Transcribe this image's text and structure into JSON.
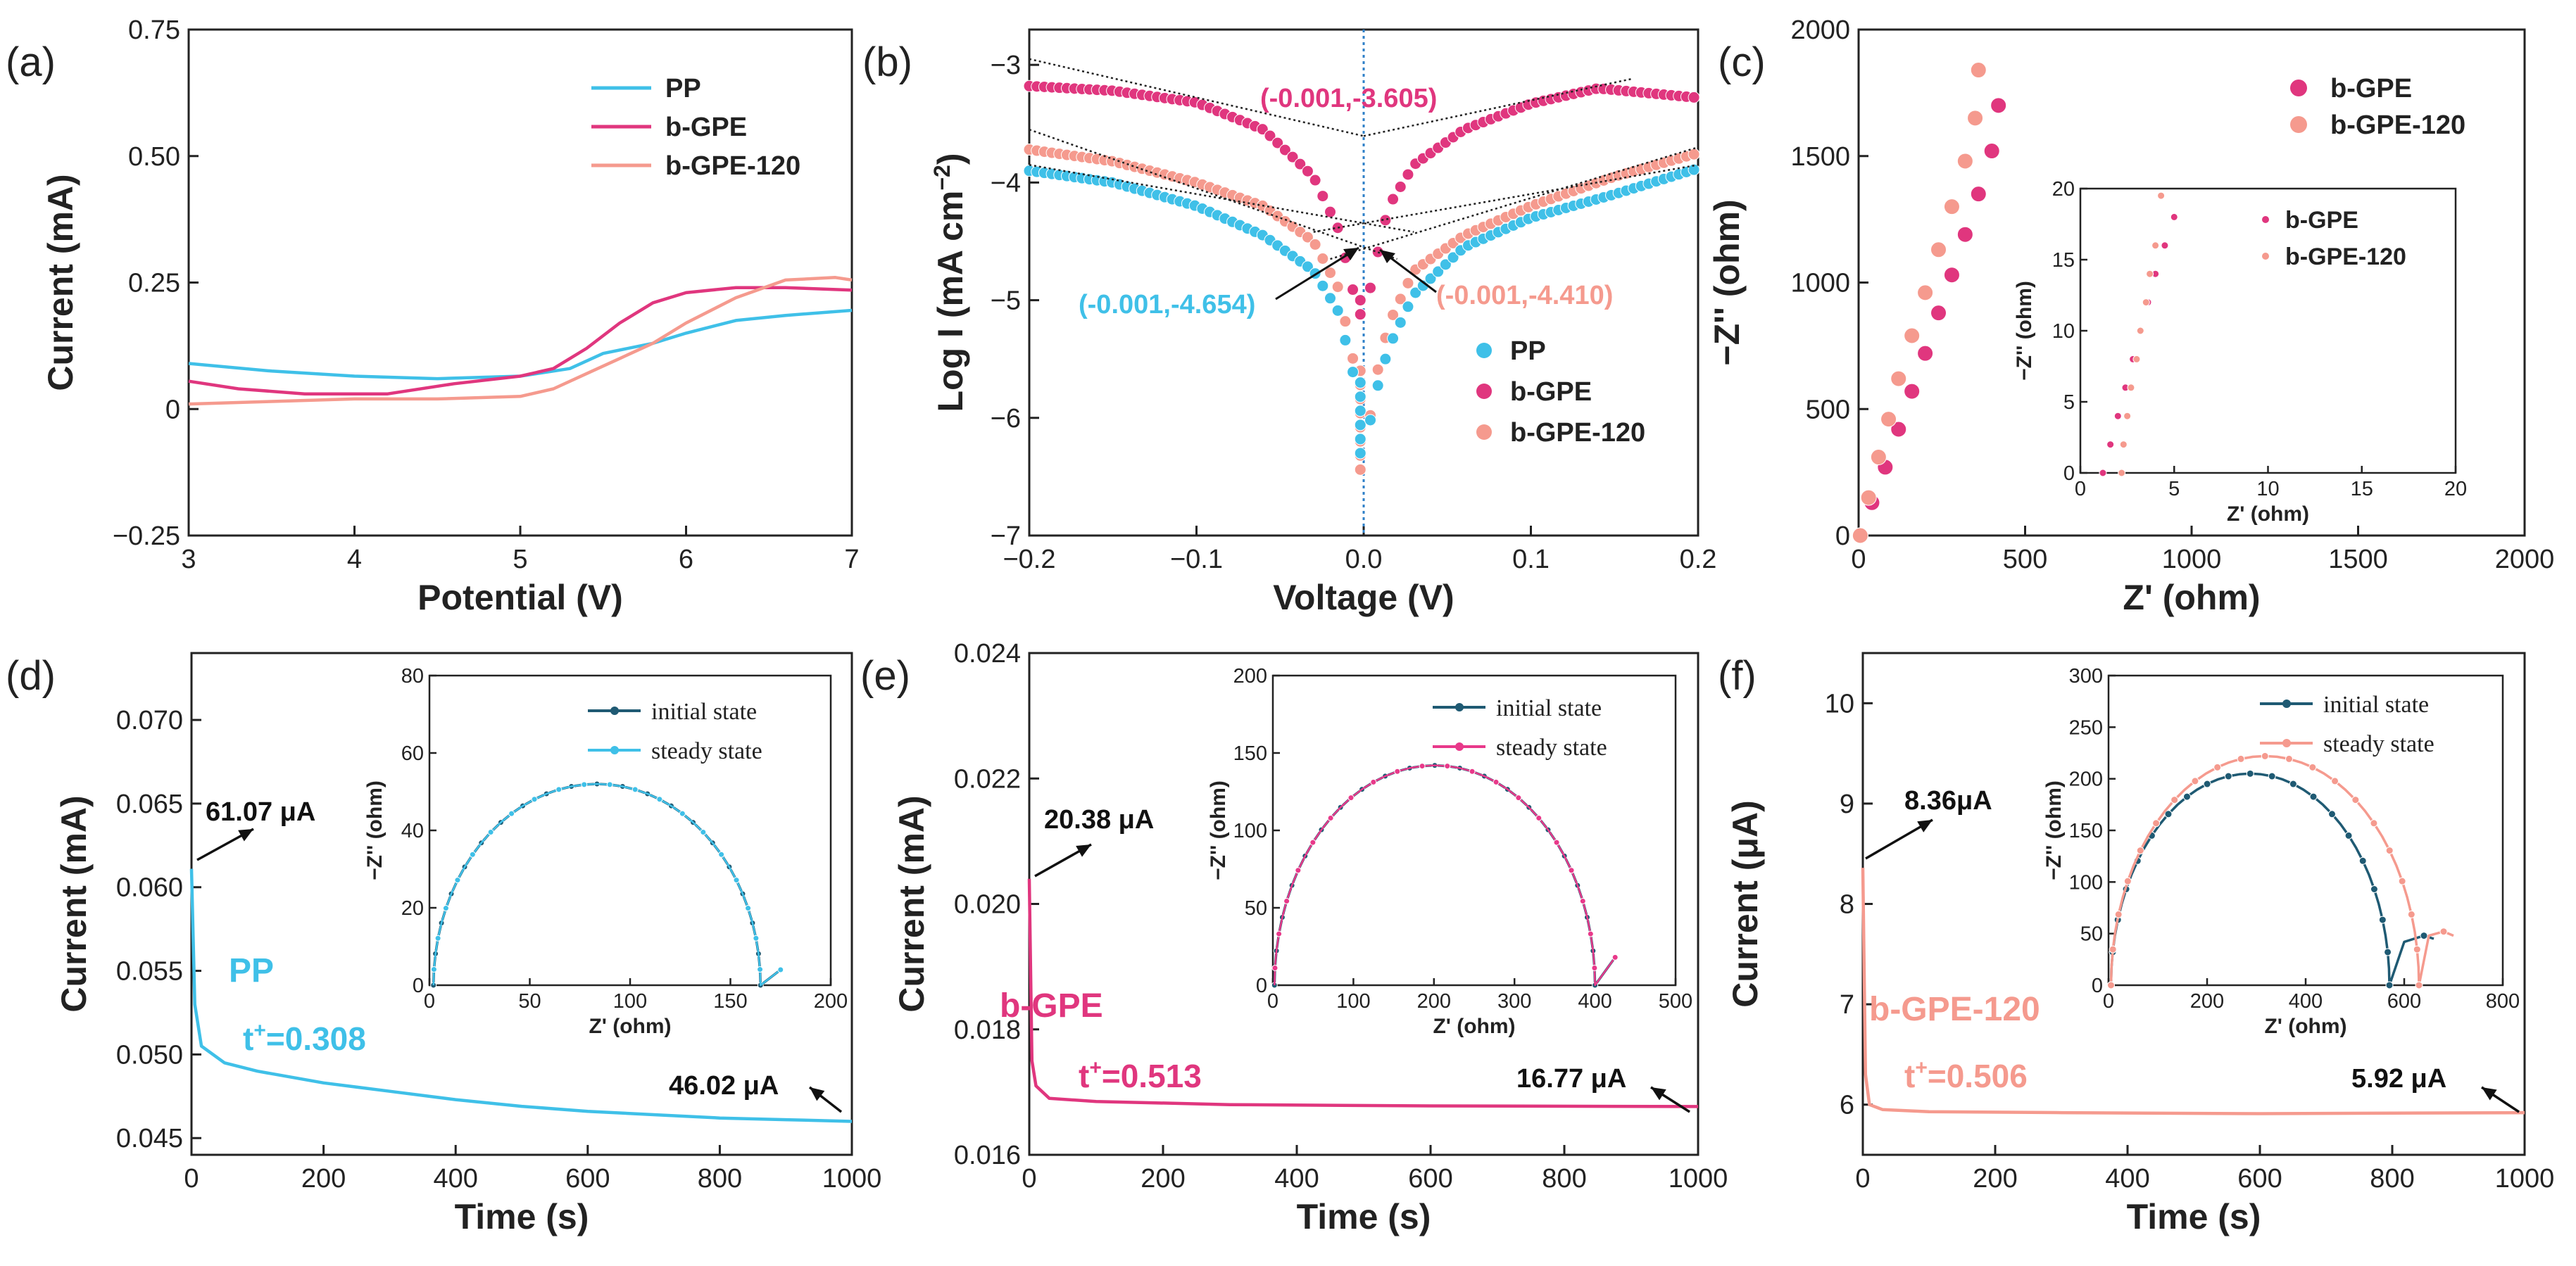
{
  "colors": {
    "PP": "#3fc0e8",
    "b-GPE": "#e0367e",
    "b-GPE-120": "#f59a8e",
    "initial": "#1f5a73",
    "steady_b": "#e8398a",
    "steady_c": "#f59a8e",
    "steady_a": "#3fc0e8",
    "guide": "#2f80c8"
  },
  "panel_labels": [
    "(a)",
    "(b)",
    "(c)",
    "(d)",
    "(e)",
    "(f)"
  ],
  "annotations": {
    "b_pink": "(-0.001,-3.605)",
    "b_blue": "(-0.001,-4.654)",
    "b_salmon": "(-0.001,-4.410)",
    "d_start": "61.07 μA",
    "d_end": "46.02 μA",
    "d_name": "PP",
    "d_t": "t",
    "d_t_sup": "+",
    "d_t_val": "=0.308",
    "e_start": "20.38 μA",
    "e_end": "16.77 μA",
    "e_name": "b-GPE",
    "e_t": "t",
    "e_t_sup": "+",
    "e_t_val": "=0.513",
    "f_start": "8.36μA",
    "f_end": "5.92 μA",
    "f_name": "b-GPE-120",
    "f_t": "t",
    "f_t_sup": "+",
    "f_t_val": "=0.506"
  },
  "chart_data": [
    {
      "id": "a",
      "type": "line",
      "xlabel": "Potential (V)",
      "ylabel": "Current (mA)",
      "xlim": [
        3,
        7
      ],
      "ylim": [
        -0.25,
        0.75
      ],
      "xticks": [
        "3",
        "4",
        "5",
        "6",
        "7"
      ],
      "yticks": [
        "−0.25",
        "0",
        "0.25",
        "0.50",
        "0.75"
      ],
      "legend": [
        "PP",
        "b-GPE",
        "b-GPE-120"
      ],
      "series": [
        {
          "name": "PP",
          "points": [
            [
              3,
              0.09
            ],
            [
              3.5,
              0.075
            ],
            [
              4,
              0.065
            ],
            [
              4.5,
              0.06
            ],
            [
              5,
              0.065
            ],
            [
              5.3,
              0.08
            ],
            [
              5.5,
              0.11
            ],
            [
              5.8,
              0.13
            ],
            [
              6,
              0.15
            ],
            [
              6.3,
              0.175
            ],
            [
              6.6,
              0.185
            ],
            [
              7,
              0.195
            ]
          ]
        },
        {
          "name": "b-GPE",
          "points": [
            [
              3,
              0.055
            ],
            [
              3.3,
              0.04
            ],
            [
              3.7,
              0.03
            ],
            [
              4.2,
              0.03
            ],
            [
              4.6,
              0.05
            ],
            [
              5,
              0.065
            ],
            [
              5.2,
              0.08
            ],
            [
              5.4,
              0.12
            ],
            [
              5.6,
              0.17
            ],
            [
              5.8,
              0.21
            ],
            [
              6,
              0.23
            ],
            [
              6.3,
              0.24
            ],
            [
              6.6,
              0.24
            ],
            [
              7,
              0.235
            ]
          ]
        },
        {
          "name": "b-GPE-120",
          "points": [
            [
              3,
              0.01
            ],
            [
              3.5,
              0.015
            ],
            [
              4,
              0.02
            ],
            [
              4.5,
              0.02
            ],
            [
              5,
              0.025
            ],
            [
              5.2,
              0.04
            ],
            [
              5.4,
              0.07
            ],
            [
              5.6,
              0.1
            ],
            [
              5.8,
              0.13
            ],
            [
              6,
              0.17
            ],
            [
              6.3,
              0.22
            ],
            [
              6.6,
              0.255
            ],
            [
              6.9,
              0.26
            ],
            [
              7,
              0.255
            ]
          ]
        }
      ]
    },
    {
      "id": "b",
      "type": "scatter",
      "xlabel": "Voltage (V)",
      "ylabel": "Log I (mA cm",
      "ylabel_sup": "−2",
      "ylabel_end": ")",
      "xlim": [
        -0.2,
        0.2
      ],
      "ylim": [
        -7,
        -2.7
      ],
      "xticks": [
        "−0.2",
        "−0.1",
        "0.0",
        "0.1",
        "0.2"
      ],
      "yticks": [
        "−7",
        "−6",
        "−5",
        "−4",
        "−3"
      ],
      "legend": [
        "PP",
        "b-GPE",
        "b-GPE-120"
      ],
      "series": [
        {
          "name": "b-GPE",
          "min": -5.2,
          "left": [
            [
              -0.2,
              -3.18
            ],
            [
              -0.15,
              -3.22
            ],
            [
              -0.1,
              -3.32
            ],
            [
              -0.06,
              -3.55
            ],
            [
              -0.03,
              -3.95
            ],
            [
              -0.015,
              -4.4
            ],
            [
              -0.005,
              -5.0
            ]
          ],
          "right": [
            [
              0.005,
              -4.8
            ],
            [
              0.015,
              -4.2
            ],
            [
              0.03,
              -3.85
            ],
            [
              0.06,
              -3.55
            ],
            [
              0.1,
              -3.33
            ],
            [
              0.14,
              -3.2
            ],
            [
              0.2,
              -3.28
            ]
          ]
        },
        {
          "name": "b-GPE-120",
          "min": -6.55,
          "left": [
            [
              -0.2,
              -3.72
            ],
            [
              -0.15,
              -3.82
            ],
            [
              -0.1,
              -4.0
            ],
            [
              -0.06,
              -4.2
            ],
            [
              -0.03,
              -4.5
            ],
            [
              -0.015,
              -4.9
            ],
            [
              -0.005,
              -5.6
            ]
          ],
          "right": [
            [
              0.005,
              -5.8
            ],
            [
              0.015,
              -5.2
            ],
            [
              0.03,
              -4.75
            ],
            [
              0.06,
              -4.45
            ],
            [
              0.1,
              -4.2
            ],
            [
              0.15,
              -3.95
            ],
            [
              0.2,
              -3.75
            ]
          ]
        },
        {
          "name": "PP",
          "min": -6.4,
          "left": [
            [
              -0.2,
              -3.9
            ],
            [
              -0.15,
              -4.0
            ],
            [
              -0.1,
              -4.2
            ],
            [
              -0.06,
              -4.45
            ],
            [
              -0.03,
              -4.75
            ],
            [
              -0.015,
              -5.1
            ],
            [
              -0.005,
              -5.7
            ]
          ],
          "right": [
            [
              0.005,
              -5.9
            ],
            [
              0.015,
              -5.4
            ],
            [
              0.03,
              -4.95
            ],
            [
              0.06,
              -4.55
            ],
            [
              0.1,
              -4.3
            ],
            [
              0.15,
              -4.1
            ],
            [
              0.2,
              -3.88
            ]
          ]
        }
      ]
    },
    {
      "id": "c",
      "type": "scatter",
      "xlabel": "Z' (ohm)",
      "ylabel": "−Z'' (ohm)",
      "xlim": [
        0,
        2000
      ],
      "ylim": [
        0,
        2000
      ],
      "xticks": [
        "0",
        "500",
        "1000",
        "1500",
        "2000"
      ],
      "yticks": [
        "0",
        "500",
        "1000",
        "1500",
        "2000"
      ],
      "legend": [
        "b-GPE",
        "b-GPE-120"
      ],
      "series": [
        {
          "name": "b-GPE",
          "points": [
            [
              5,
              0
            ],
            [
              40,
              130
            ],
            [
              80,
              270
            ],
            [
              120,
              420
            ],
            [
              160,
              570
            ],
            [
              200,
              720
            ],
            [
              240,
              880
            ],
            [
              280,
              1030
            ],
            [
              320,
              1190
            ],
            [
              360,
              1350
            ],
            [
              400,
              1520
            ],
            [
              420,
              1700
            ]
          ]
        },
        {
          "name": "b-GPE-120",
          "points": [
            [
              5,
              0
            ],
            [
              30,
              150
            ],
            [
              60,
              310
            ],
            [
              90,
              460
            ],
            [
              120,
              620
            ],
            [
              160,
              790
            ],
            [
              200,
              960
            ],
            [
              240,
              1130
            ],
            [
              280,
              1300
            ],
            [
              320,
              1480
            ],
            [
              350,
              1650
            ],
            [
              360,
              1840
            ]
          ]
        }
      ],
      "inset": {
        "xlabel": "Z' (ohm)",
        "ylabel": "−Z'' (ohm)",
        "xlim": [
          0,
          20
        ],
        "ylim": [
          0,
          20
        ],
        "xticks": [
          "0",
          "5",
          "10",
          "15",
          "20"
        ],
        "yticks": [
          "0",
          "5",
          "10",
          "15",
          "20"
        ],
        "legend": [
          "b-GPE",
          "b-GPE-120"
        ],
        "series": [
          {
            "name": "b-GPE",
            "points": [
              [
                1.2,
                0
              ],
              [
                1.6,
                2
              ],
              [
                2.0,
                4
              ],
              [
                2.4,
                6
              ],
              [
                2.8,
                8
              ],
              [
                3.2,
                10
              ],
              [
                3.6,
                12
              ],
              [
                4.0,
                14
              ],
              [
                4.5,
                16
              ],
              [
                5.0,
                18
              ]
            ]
          },
          {
            "name": "b-GPE-120",
            "points": [
              [
                2.2,
                0
              ],
              [
                2.3,
                2
              ],
              [
                2.5,
                4
              ],
              [
                2.7,
                6
              ],
              [
                3.0,
                8
              ],
              [
                3.2,
                10
              ],
              [
                3.5,
                12
              ],
              [
                3.7,
                14
              ],
              [
                4.0,
                16
              ],
              [
                4.3,
                19.5
              ]
            ]
          }
        ]
      }
    },
    {
      "id": "d",
      "type": "line",
      "xlabel": "Time (s)",
      "ylabel": "Current (mA)",
      "xlim": [
        0,
        1000
      ],
      "ylim": [
        0.044,
        0.074
      ],
      "xticks": [
        "0",
        "200",
        "400",
        "600",
        "800",
        "1000"
      ],
      "yticks": [
        "0.045",
        "0.050",
        "0.055",
        "0.060",
        "0.065",
        "0.070"
      ],
      "series": [
        {
          "name": "PP",
          "points": [
            [
              0,
              0.0611
            ],
            [
              5,
              0.053
            ],
            [
              15,
              0.0505
            ],
            [
              50,
              0.0495
            ],
            [
              100,
              0.049
            ],
            [
              200,
              0.0483
            ],
            [
              300,
              0.0478
            ],
            [
              400,
              0.0473
            ],
            [
              500,
              0.0469
            ],
            [
              600,
              0.0466
            ],
            [
              700,
              0.0464
            ],
            [
              800,
              0.0462
            ],
            [
              900,
              0.0461
            ],
            [
              1000,
              0.046
            ]
          ]
        }
      ],
      "inset": {
        "xlabel": "Z' (ohm)",
        "ylabel": "−Z'' (ohm)",
        "xlim": [
          0,
          200
        ],
        "ylim": [
          0,
          80
        ],
        "xticks": [
          "0",
          "50",
          "100",
          "150",
          "200"
        ],
        "yticks": [
          "0",
          "20",
          "40",
          "60",
          "80"
        ],
        "legend": [
          "initial state",
          "steady state"
        ],
        "arc": {
          "start": 2,
          "end": 165,
          "peak": 52,
          "tail_end": 175,
          "tail_y": 4
        }
      }
    },
    {
      "id": "e",
      "type": "line",
      "xlabel": "Time (s)",
      "ylabel": "Current (mA)",
      "xlim": [
        0,
        1000
      ],
      "ylim": [
        0.016,
        0.024
      ],
      "xticks": [
        "0",
        "200",
        "400",
        "600",
        "800",
        "1000"
      ],
      "yticks": [
        "0.016",
        "0.018",
        "0.020",
        "0.022",
        "0.024"
      ],
      "series": [
        {
          "name": "b-GPE",
          "points": [
            [
              0,
              0.0204
            ],
            [
              4,
              0.0175
            ],
            [
              10,
              0.0171
            ],
            [
              30,
              0.0169
            ],
            [
              100,
              0.01685
            ],
            [
              300,
              0.0168
            ],
            [
              600,
              0.01678
            ],
            [
              1000,
              0.01677
            ]
          ]
        }
      ],
      "inset": {
        "xlabel": "Z' (ohm)",
        "ylabel": "−Z'' (ohm)",
        "xlim": [
          0,
          500
        ],
        "ylim": [
          0,
          200
        ],
        "xticks": [
          "0",
          "100",
          "200",
          "300",
          "400",
          "500"
        ],
        "yticks": [
          "0",
          "50",
          "100",
          "150",
          "200"
        ],
        "legend": [
          "initial state",
          "steady state"
        ],
        "arc": {
          "start": 2,
          "end": 400,
          "peak": 142,
          "tail_end": 425,
          "tail_y": 18
        }
      }
    },
    {
      "id": "f",
      "type": "line",
      "xlabel": "Time (s)",
      "ylabel": "Current (μA)",
      "xlim": [
        0,
        1000
      ],
      "ylim": [
        5.5,
        10.5
      ],
      "xticks": [
        "0",
        "200",
        "400",
        "600",
        "800",
        "1000"
      ],
      "yticks": [
        "6",
        "7",
        "8",
        "9",
        "10"
      ],
      "series": [
        {
          "name": "b-GPE-120",
          "points": [
            [
              0,
              8.36
            ],
            [
              4,
              6.3
            ],
            [
              10,
              6.0
            ],
            [
              30,
              5.95
            ],
            [
              100,
              5.93
            ],
            [
              300,
              5.92
            ],
            [
              600,
              5.91
            ],
            [
              1000,
              5.92
            ]
          ]
        }
      ],
      "inset": {
        "xlabel": "Z' (ohm)",
        "ylabel": "−Z'' (ohm)",
        "xlim": [
          0,
          800
        ],
        "ylim": [
          0,
          300
        ],
        "xticks": [
          "0",
          "200",
          "400",
          "600",
          "800"
        ],
        "yticks": [
          "0",
          "50",
          "100",
          "150",
          "200",
          "250",
          "300"
        ],
        "legend": [
          "initial state",
          "steady state"
        ],
        "arcs": [
          {
            "name": "initial",
            "start": 5,
            "end": 570,
            "peak": 205,
            "tail": [
              [
                600,
                42
              ],
              [
                640,
                48
              ],
              [
                660,
                45
              ]
            ]
          },
          {
            "name": "steady",
            "start": 5,
            "end": 630,
            "peak": 222,
            "tail": [
              [
                650,
                48
              ],
              [
                680,
                52
              ],
              [
                700,
                48
              ]
            ]
          }
        ]
      }
    }
  ]
}
